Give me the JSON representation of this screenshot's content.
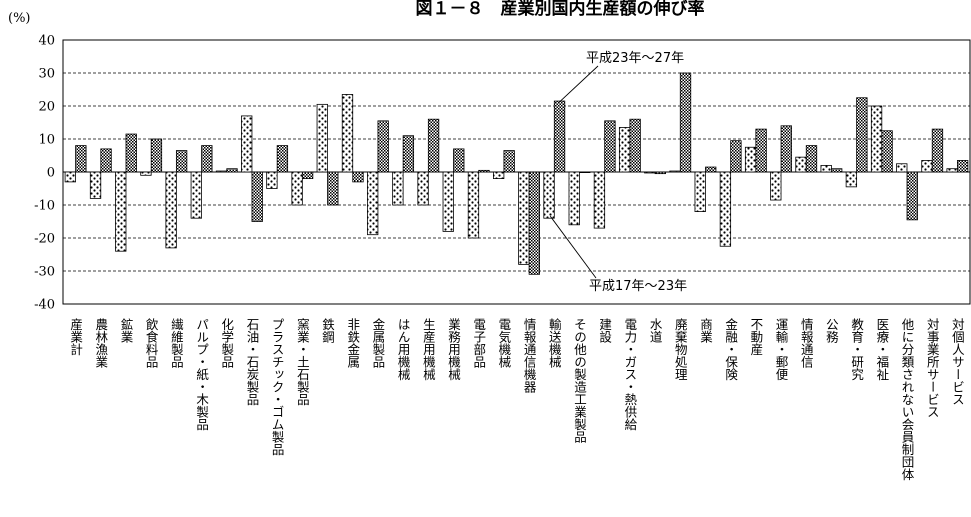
{
  "chart_data": {
    "type": "bar",
    "title": "図１－８　産業別国内生産額の伸び率",
    "ylabel": "(%)",
    "ylim": [
      -40,
      40
    ],
    "yticks": [
      40,
      30,
      20,
      10,
      0,
      -10,
      -20,
      -30,
      -40
    ],
    "grid": true,
    "categories": [
      "産業計",
      "農林漁業",
      "鉱業",
      "飲食料品",
      "繊維製品",
      "パルプ・紙・木製品",
      "化学製品",
      "石油・石炭製品",
      "プラスチック・ゴム製品",
      "窯業・土石製品",
      "鉄鋼",
      "非鉄金属",
      "金属製品",
      "はん用機械",
      "生産用機械",
      "業務用機械",
      "電子部品",
      "電気機械",
      "情報通信機器",
      "輸送機械",
      "その他の製造工業製品",
      "建設",
      "電力・ガス・熱供給",
      "水道",
      "廃棄物処理",
      "商業",
      "金融・保険",
      "不動産",
      "運輸・郵便",
      "情報通信",
      "公務",
      "教育・研究",
      "医療・福祉",
      "他に分類されない会員制団体",
      "対事業所サービス",
      "対個人サービス"
    ],
    "series": [
      {
        "name": "平成17年～23年",
        "values": [
          -3,
          -8,
          -24,
          -1,
          -23,
          -14,
          0.3,
          17,
          -5,
          -10,
          20.5,
          23.5,
          -19,
          -10,
          -10,
          -18,
          -20,
          -2,
          -28,
          -14,
          -16,
          -17,
          13.5,
          -0.3,
          0.3,
          -12,
          -22.5,
          7.5,
          -8.5,
          4.5,
          2,
          -4.5,
          20,
          2.5,
          3.5,
          1
        ]
      },
      {
        "name": "平成23年～27年",
        "values": [
          8,
          7,
          11.5,
          10,
          6.5,
          8,
          1,
          -15,
          8,
          -2,
          -10,
          -3,
          15.5,
          11,
          16,
          7,
          0.5,
          6.5,
          -31,
          21.5,
          0,
          15.5,
          16,
          -0.5,
          30,
          1.5,
          9.5,
          13,
          14,
          8,
          1,
          22.5,
          12.5,
          -14.5,
          13,
          3.5
        ]
      }
    ],
    "annotations": [
      {
        "text": "平成23年～27年",
        "points_to": "輸送機械 平成23年～27年"
      },
      {
        "text": "平成17年～23年",
        "points_to": "輸送機械 平成17年～23年"
      }
    ]
  }
}
